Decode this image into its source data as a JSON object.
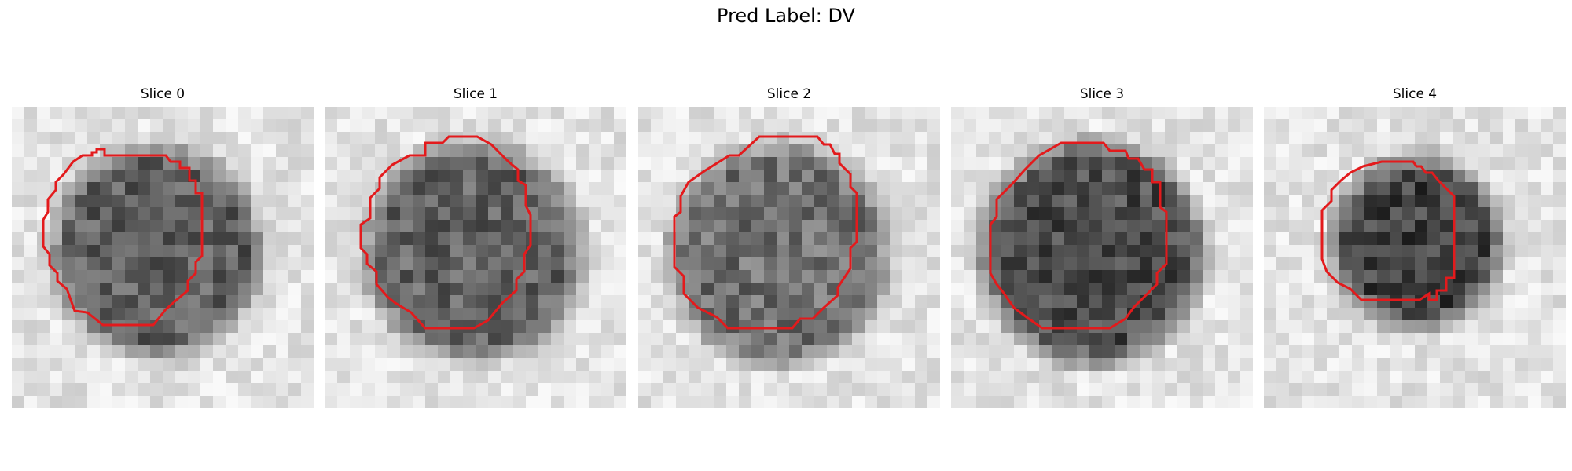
{
  "figure": {
    "title": "Pred Label: DV"
  },
  "overlay_color": "#e31a1c",
  "panels": [
    {
      "title": "Slice 0"
    },
    {
      "title": "Slice 1"
    },
    {
      "title": "Slice 2"
    },
    {
      "title": "Slice 3"
    },
    {
      "title": "Slice 4"
    }
  ]
}
